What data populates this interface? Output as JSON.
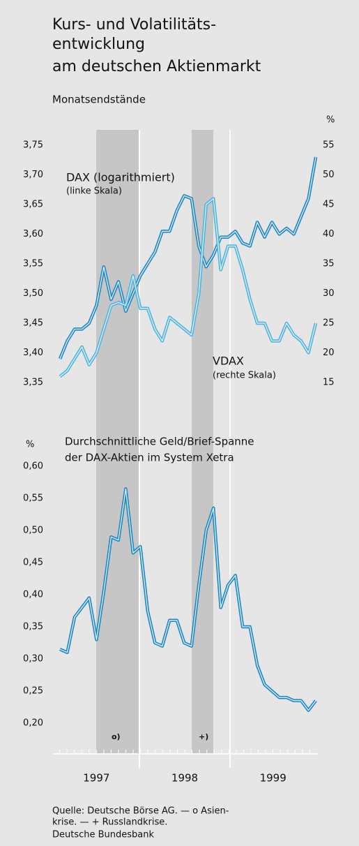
{
  "chart_data": [
    {
      "type": "line",
      "title": [
        "Kurs- und Volatilitäts-",
        "entwicklung",
        "am deutschen Aktienmarkt"
      ],
      "subtitle": "Monatsendstände",
      "y2label": "%",
      "categories": [
        null,
        null,
        null,
        null,
        null,
        null,
        null,
        null,
        null,
        null,
        null,
        null,
        null,
        null,
        null,
        null,
        null,
        null,
        null,
        null,
        null,
        null,
        null,
        null,
        null,
        null,
        null,
        null,
        null,
        null,
        null,
        null,
        null,
        null,
        null,
        null
      ],
      "xlabels": [
        "1997",
        "1998",
        "1999"
      ],
      "ylim": [
        3.35,
        3.75
      ],
      "yticks": [
        {
          "value": 3.75,
          "label": "3,75"
        },
        {
          "value": 3.7,
          "label": "3,70"
        },
        {
          "value": 3.65,
          "label": "3,65"
        },
        {
          "value": 3.6,
          "label": "3,60"
        },
        {
          "value": 3.55,
          "label": "3,55"
        },
        {
          "value": 3.5,
          "label": "3,50"
        },
        {
          "value": 3.45,
          "label": "3,45"
        },
        {
          "value": 3.4,
          "label": "3,40"
        },
        {
          "value": 3.35,
          "label": "3,35"
        }
      ],
      "y2lim": [
        15,
        55
      ],
      "y2ticks": [
        55,
        50,
        45,
        40,
        35,
        30,
        25,
        20,
        15
      ],
      "series": [
        {
          "name": "DAX (logarithmiert)",
          "scale_label": "(linke Skala)",
          "color": "#1f86c4",
          "values": [
            3.39,
            3.42,
            3.44,
            3.44,
            3.45,
            3.48,
            3.545,
            3.49,
            3.52,
            3.47,
            3.5,
            3.53,
            3.55,
            3.57,
            3.605,
            3.605,
            3.64,
            3.665,
            3.66,
            3.58,
            3.545,
            3.565,
            3.595,
            3.595,
            3.605,
            3.585,
            3.58,
            3.62,
            3.595,
            3.62,
            3.6,
            3.61,
            3.6,
            3.63,
            3.66,
            3.73
          ]
        },
        {
          "name": "VDAX",
          "scale_label": "(rechte Skala)",
          "color": "#4fb3e0",
          "axis": "y2",
          "values": [
            16,
            17,
            19,
            21,
            18,
            20,
            24,
            28,
            28.5,
            28,
            33,
            27.5,
            27.5,
            24,
            22,
            26,
            25,
            24,
            23,
            30,
            45,
            46,
            34,
            38,
            38,
            34,
            29,
            25,
            25,
            22,
            22,
            25,
            23,
            22,
            20,
            25
          ]
        }
      ],
      "annotations": [
        "o)",
        "+)"
      ]
    },
    {
      "type": "line",
      "title": [
        "Durchschnittliche Geld/Brief-Spanne",
        "der DAX-Aktien im System Xetra"
      ],
      "ylabel": "%",
      "ylim": [
        0.2,
        0.6
      ],
      "yticks": [
        {
          "value": 0.6,
          "label": "0,60"
        },
        {
          "value": 0.55,
          "label": "0,55"
        },
        {
          "value": 0.5,
          "label": "0,50"
        },
        {
          "value": 0.45,
          "label": "0,45"
        },
        {
          "value": 0.4,
          "label": "0,40"
        },
        {
          "value": 0.35,
          "label": "0,35"
        },
        {
          "value": 0.3,
          "label": "0,30"
        },
        {
          "value": 0.25,
          "label": "0,25"
        },
        {
          "value": 0.2,
          "label": "0,20"
        }
      ],
      "series": [
        {
          "name": null,
          "color": "#1f86c4",
          "values": [
            0.315,
            0.31,
            0.365,
            0.38,
            0.395,
            0.33,
            0.405,
            0.49,
            0.485,
            0.565,
            0.465,
            0.475,
            0.375,
            0.325,
            0.32,
            0.36,
            0.36,
            0.325,
            0.32,
            0.415,
            0.5,
            0.535,
            0.38,
            0.415,
            0.43,
            0.35,
            0.35,
            0.29,
            0.26,
            0.25,
            0.24,
            0.24,
            0.235,
            0.235,
            0.22,
            0.235
          ]
        }
      ]
    }
  ],
  "footer": {
    "source": [
      "Quelle: Deutsche Börse AG. — o Asien-",
      "krise. — + Russlandkrise."
    ],
    "publisher": "Deutsche Bundesbank"
  }
}
